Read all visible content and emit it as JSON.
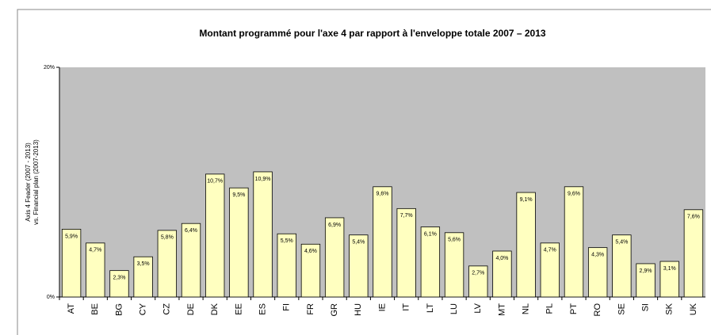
{
  "chart_data": {
    "type": "bar",
    "title": "Montant programmé pour l'axe 4 par rapport à l'enveloppe totale 2007 – 2013",
    "y_label": [
      "Axis 4 Feader (2007 - 2013)",
      "vs. Financial plan (2007-2013)"
    ],
    "categories": [
      "AT",
      "BE",
      "BG",
      "CY",
      "CZ",
      "DE",
      "DK",
      "EE",
      "ES",
      "FI",
      "FR",
      "GR",
      "HU",
      "IE",
      "IT",
      "LT",
      "LU",
      "LV",
      "MT",
      "NL",
      "PL",
      "PT",
      "RO",
      "SE",
      "SI",
      "SK",
      "UK"
    ],
    "values": [
      5.9,
      4.7,
      2.3,
      3.5,
      5.8,
      6.4,
      10.7,
      9.5,
      10.9,
      5.5,
      4.6,
      6.9,
      5.4,
      9.6,
      7.7,
      6.1,
      5.6,
      2.7,
      4.0,
      9.1,
      4.7,
      9.6,
      4.3,
      5.4,
      2.9,
      3.1,
      7.6
    ],
    "value_labels": [
      "5,9%",
      "4,7%",
      "2,3%",
      "3,5%",
      "5,8%",
      "6,4%",
      "10,7%",
      "9,5%",
      "10,9%",
      "5,5%",
      "4,6%",
      "6,9%",
      "5,4%",
      "9,6%",
      "7,7%",
      "6,1%",
      "5,6%",
      "2,7%",
      "4,0%",
      "9,1%",
      "4,7%",
      "9,6%",
      "4,3%",
      "5,4%",
      "2,9%",
      "3,1%",
      "7,6%"
    ],
    "color": "#ffffc0",
    "plot_background": "#c0c0c0",
    "ylim": [
      0,
      20
    ],
    "yticks": [
      {
        "value": 0,
        "label": "0%"
      },
      {
        "value": 20,
        "label": "20%"
      }
    ]
  }
}
